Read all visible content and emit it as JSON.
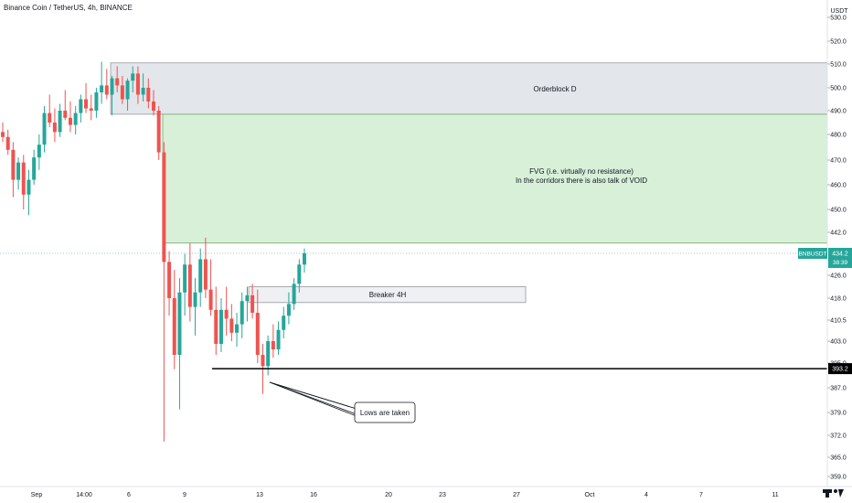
{
  "chart_data": {
    "type": "candlestick",
    "title": "Binance Coin / TetherUS, 4h, BINANCE",
    "currency": "USDT",
    "ylim": [
      355.5,
      536.0
    ],
    "y_ticks": [
      "530.0",
      "520.0",
      "510.0",
      "500.0",
      "490.0",
      "480.0",
      "470.0",
      "460.0",
      "450.0",
      "442.0",
      "434.2",
      "426.0",
      "418.0",
      "410.5",
      "403.0",
      "395.0",
      "387.0",
      "379.0",
      "372.0",
      "365.0",
      "359.0"
    ],
    "x_labels": [
      "Sep",
      "14:00",
      "6",
      "9",
      "13",
      "16",
      "20",
      "23",
      "27",
      "Oct",
      "4",
      "7",
      "11"
    ],
    "last_price": {
      "symbol": "BNBUSDT",
      "value": "434.2",
      "countdown": "38:39",
      "color": "#26a69a"
    },
    "line_level": {
      "value": "393.2"
    },
    "zones": [
      {
        "label": "Orderblock D",
        "low": 488.5,
        "high": 510.5,
        "color": "#e3e6ea"
      },
      {
        "label_lines": [
          "FVG (i.e. virtually no resistance)",
          "In the corridors there is also talk of VOID"
        ],
        "low": 438.0,
        "high": 488.5,
        "color": "#d8f0d8"
      },
      {
        "label": "Breaker 4H",
        "low": 416.5,
        "high": 422.0,
        "color": "#eef0f3"
      }
    ],
    "annotation": {
      "text": "Lows are taken"
    },
    "candles": [
      [
        481,
        485,
        477,
        479
      ],
      [
        479,
        482,
        472,
        474
      ],
      [
        474,
        477,
        455,
        462
      ],
      [
        462,
        471,
        458,
        469
      ],
      [
        469,
        472,
        450,
        456
      ],
      [
        456,
        466,
        448,
        462
      ],
      [
        462,
        474,
        460,
        471
      ],
      [
        471,
        480,
        466,
        476
      ],
      [
        476,
        492,
        473,
        489
      ],
      [
        489,
        497,
        483,
        485
      ],
      [
        485,
        491,
        477,
        481
      ],
      [
        481,
        493,
        479,
        490
      ],
      [
        490,
        499,
        486,
        487
      ],
      [
        487,
        494,
        481,
        484
      ],
      [
        484,
        492,
        480,
        489
      ],
      [
        489,
        497,
        485,
        495
      ],
      [
        495,
        502,
        489,
        491
      ],
      [
        491,
        497,
        486,
        490
      ],
      [
        490,
        500,
        487,
        498
      ],
      [
        498,
        511,
        493,
        501
      ],
      [
        501,
        508,
        495,
        497
      ],
      [
        497,
        505,
        488,
        504
      ],
      [
        504,
        509,
        498,
        501
      ],
      [
        501,
        505,
        493,
        495
      ],
      [
        495,
        504,
        490,
        503
      ],
      [
        503,
        509,
        498,
        506
      ],
      [
        506,
        509,
        493,
        497
      ],
      [
        497,
        506,
        494,
        500
      ],
      [
        500,
        504,
        491,
        494
      ],
      [
        494,
        499,
        488,
        490
      ],
      [
        490,
        492,
        470,
        473
      ],
      [
        473,
        477,
        370,
        431
      ],
      [
        431,
        435,
        412,
        418
      ],
      [
        418,
        428,
        393,
        398
      ],
      [
        398,
        425,
        380,
        420
      ],
      [
        420,
        434,
        412,
        430
      ],
      [
        430,
        438,
        410,
        415
      ],
      [
        415,
        425,
        405,
        420
      ],
      [
        420,
        436,
        415,
        432
      ],
      [
        432,
        440,
        418,
        421
      ],
      [
        421,
        432,
        412,
        414
      ],
      [
        414,
        422,
        398,
        402
      ],
      [
        402,
        418,
        399,
        414
      ],
      [
        414,
        422,
        405,
        411
      ],
      [
        411,
        416,
        403,
        406
      ],
      [
        406,
        413,
        401,
        409
      ],
      [
        409,
        420,
        404,
        417
      ],
      [
        417,
        422,
        410,
        419
      ],
      [
        419,
        423,
        411,
        413
      ],
      [
        413,
        421,
        395,
        398
      ],
      [
        398,
        402,
        385,
        394
      ],
      [
        394,
        405,
        391,
        403
      ],
      [
        403,
        409,
        397,
        400
      ],
      [
        400,
        410,
        398,
        407
      ],
      [
        407,
        415,
        404,
        412
      ],
      [
        412,
        420,
        409,
        416
      ],
      [
        416,
        425,
        414,
        423
      ],
      [
        423,
        432,
        420,
        430
      ],
      [
        430,
        436,
        427,
        434.2
      ]
    ]
  }
}
